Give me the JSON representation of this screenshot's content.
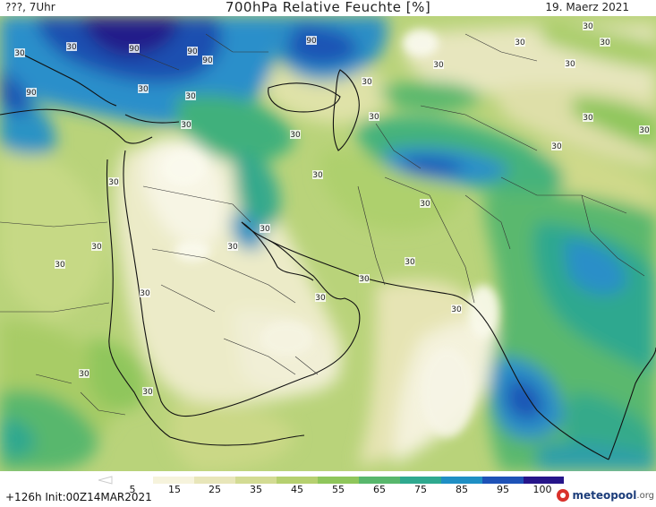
{
  "header": {
    "left": "???, 7Uhr",
    "title": "700hPa Relative Feuchte [%]",
    "date": "19. Maerz 2021"
  },
  "footer": {
    "init": "+126h Init:00Z14MAR2021",
    "brand": "meteopool",
    "brand_tld": ".org"
  },
  "legend": {
    "labels": [
      "5",
      "15",
      "25",
      "35",
      "45",
      "55",
      "65",
      "75",
      "85",
      "95",
      "100"
    ],
    "colors": [
      "#ffffff",
      "#f6f3dc",
      "#e8e6b9",
      "#d3db93",
      "#b6d06f",
      "#8fc65b",
      "#58b76c",
      "#2fa98f",
      "#1f8fc4",
      "#1e52b7",
      "#26158a",
      "#3d0a6b"
    ]
  },
  "map": {
    "contour_labels": [
      "30",
      "30",
      "90",
      "90",
      "90",
      "90",
      "90",
      "30",
      "30",
      "30",
      "30",
      "30",
      "30",
      "30",
      "30",
      "30",
      "30",
      "30",
      "30",
      "30",
      "30",
      "30",
      "30",
      "30",
      "30",
      "30",
      "30",
      "30",
      "30",
      "30",
      "30",
      "30",
      "30",
      "30",
      "30"
    ]
  }
}
